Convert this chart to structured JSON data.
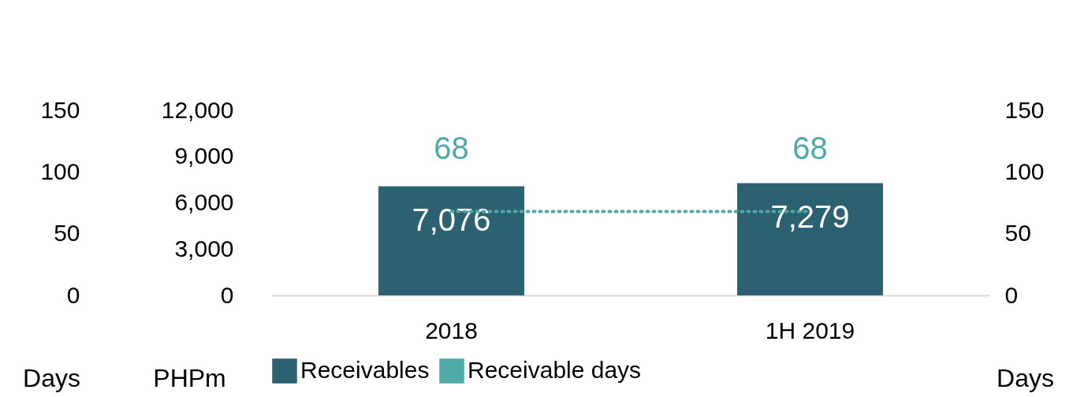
{
  "chart_data": {
    "type": "bar",
    "categories": [
      "2018",
      "1H 2019"
    ],
    "ylabel": "PHPm",
    "y2label": "Days",
    "y3label": "Days",
    "ylim": [
      0,
      12000
    ],
    "yticks": [
      0,
      {
        "value": 3000,
        "label": "3,000"
      },
      {
        "value": 6000,
        "label": "6,000"
      },
      {
        "value": 9000,
        "label": "9,000"
      },
      {
        "value": 12000,
        "label": "12,000"
      }
    ],
    "y2lim": [
      0,
      150
    ],
    "y2ticks": [
      0,
      50,
      100,
      150
    ],
    "y3lim": [
      0,
      150
    ],
    "y3ticks": [
      0,
      50,
      100,
      150
    ],
    "legend": "bottom",
    "grid": false,
    "series": [
      {
        "name": "Receivables",
        "color": "#2b6170",
        "values": [
          7076,
          7279
        ],
        "value_labels": [
          "7,076",
          "7,279"
        ]
      },
      {
        "name": "Receivable days",
        "type": "line",
        "axis": "y2",
        "color": "#4fa9a8",
        "values": [
          68,
          68
        ],
        "line_style": "dotted",
        "marker": "none",
        "value_labels": [
          "68",
          "68"
        ]
      }
    ]
  }
}
